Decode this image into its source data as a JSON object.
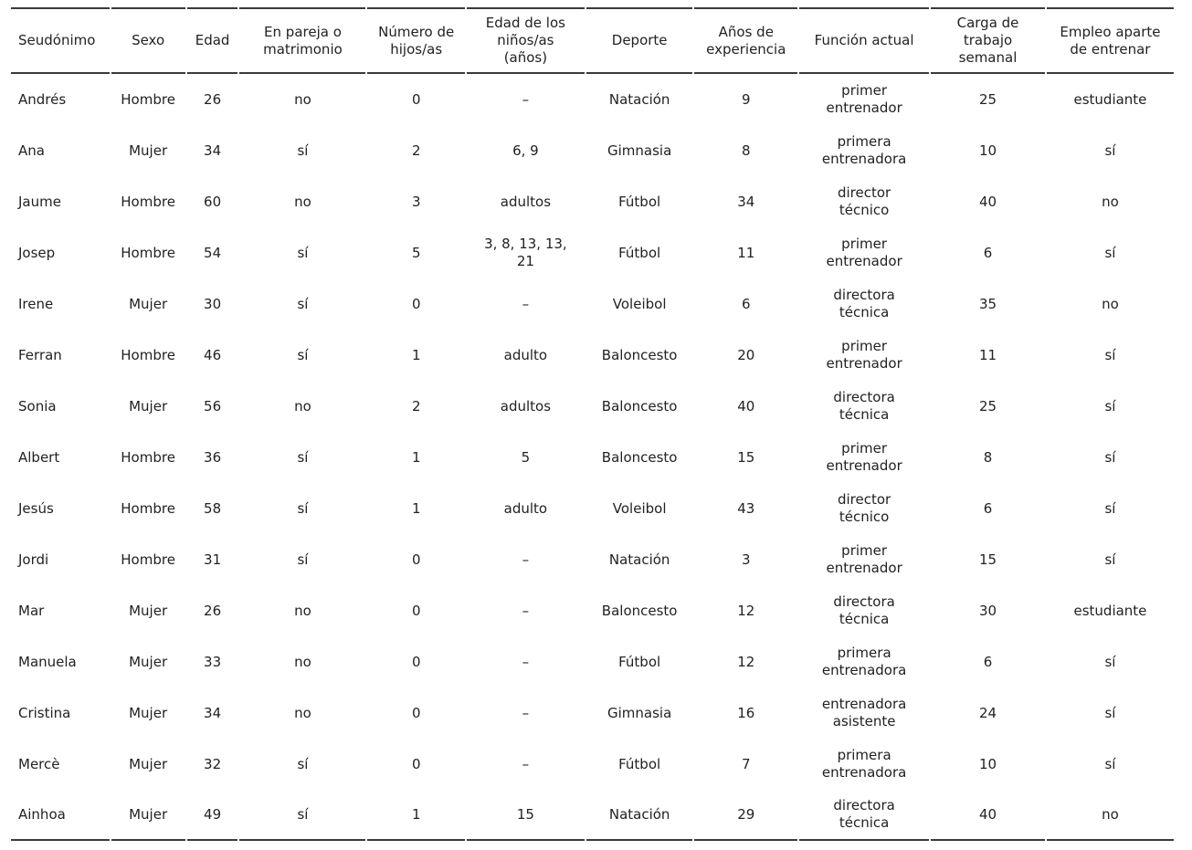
{
  "colors": {
    "text": "#222222",
    "rule": "#3a3a3a",
    "background": "#ffffff"
  },
  "table": {
    "columns": [
      {
        "key": "seudonimo",
        "label": "Seudónimo"
      },
      {
        "key": "sexo",
        "label": "Sexo"
      },
      {
        "key": "edad",
        "label": "Edad"
      },
      {
        "key": "pareja",
        "label": "En pareja o\nmatrimonio"
      },
      {
        "key": "hijos",
        "label": "Número de\nhijos/as"
      },
      {
        "key": "edad-ninos",
        "label": "Edad de los\nniños/as\n(años)"
      },
      {
        "key": "deporte",
        "label": "Deporte"
      },
      {
        "key": "experiencia",
        "label": "Años de\nexperiencia"
      },
      {
        "key": "funcion",
        "label": "Función actual"
      },
      {
        "key": "carga",
        "label": "Carga de\ntrabajo\nsemanal"
      },
      {
        "key": "empleo",
        "label": "Empleo aparte\nde entrenar"
      }
    ],
    "rows": [
      [
        "Andrés",
        "Hombre",
        "26",
        "no",
        "0",
        "–",
        "Natación",
        "9",
        "primer\nentrenador",
        "25",
        "estudiante"
      ],
      [
        "Ana",
        "Mujer",
        "34",
        "sí",
        "2",
        "6, 9",
        "Gimnasia",
        "8",
        "primera\nentrenadora",
        "10",
        "sí"
      ],
      [
        "Jaume",
        "Hombre",
        "60",
        "no",
        "3",
        "adultos",
        "Fútbol",
        "34",
        "director\ntécnico",
        "40",
        "no"
      ],
      [
        "Josep",
        "Hombre",
        "54",
        "sí",
        "5",
        "3, 8, 13, 13,\n21",
        "Fútbol",
        "11",
        "primer\nentrenador",
        "6",
        "sí"
      ],
      [
        "Irene",
        "Mujer",
        "30",
        "sí",
        "0",
        "–",
        "Voleibol",
        "6",
        "directora\ntécnica",
        "35",
        "no"
      ],
      [
        "Ferran",
        "Hombre",
        "46",
        "sí",
        "1",
        "adulto",
        "Baloncesto",
        "20",
        "primer\nentrenador",
        "11",
        "sí"
      ],
      [
        "Sonia",
        "Mujer",
        "56",
        "no",
        "2",
        "adultos",
        "Baloncesto",
        "40",
        "directora\ntécnica",
        "25",
        "sí"
      ],
      [
        "Albert",
        "Hombre",
        "36",
        "sí",
        "1",
        "5",
        "Baloncesto",
        "15",
        "primer\nentrenador",
        "8",
        "sí"
      ],
      [
        "Jesús",
        "Hombre",
        "58",
        "sí",
        "1",
        "adulto",
        "Voleibol",
        "43",
        "director\ntécnico",
        "6",
        "sí"
      ],
      [
        "Jordi",
        "Hombre",
        "31",
        "sí",
        "0",
        "–",
        "Natación",
        "3",
        "primer\nentrenador",
        "15",
        "sí"
      ],
      [
        "Mar",
        "Mujer",
        "26",
        "no",
        "0",
        "–",
        "Baloncesto",
        "12",
        "directora\ntécnica",
        "30",
        "estudiante"
      ],
      [
        "Manuela",
        "Mujer",
        "33",
        "no",
        "0",
        "–",
        "Fútbol",
        "12",
        "primera\nentrenadora",
        "6",
        "sí"
      ],
      [
        "Cristina",
        "Mujer",
        "34",
        "no",
        "0",
        "–",
        "Gimnasia",
        "16",
        "entrenadora\nasistente",
        "24",
        "sí"
      ],
      [
        "Mercè",
        "Mujer",
        "32",
        "sí",
        "0",
        "–",
        "Fútbol",
        "7",
        "primera\nentrenadora",
        "10",
        "sí"
      ],
      [
        "Ainhoa",
        "Mujer",
        "49",
        "sí",
        "1",
        "15",
        "Natación",
        "29",
        "directora\ntécnica",
        "40",
        "no"
      ]
    ]
  }
}
